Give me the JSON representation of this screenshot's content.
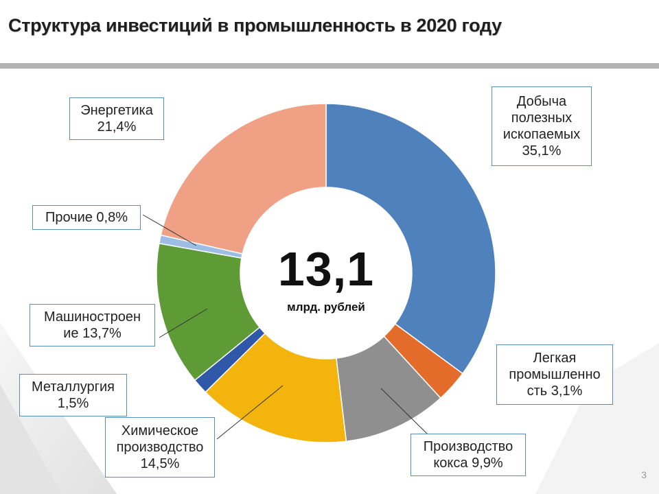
{
  "slide": {
    "title": "Структура инвестиций в промышленность в 2020 году",
    "page_number": "3"
  },
  "center": {
    "value": "13,1",
    "unit": "млрд. рублей"
  },
  "labels": {
    "mining": [
      "Добыча",
      "полезных",
      "ископаемых",
      "35,1%"
    ],
    "light": [
      "Легкая",
      "промышленно",
      "сть 3,1%"
    ],
    "coke": [
      "Производство",
      "кокса 9,9%"
    ],
    "chem": [
      "Химическое",
      "производство",
      "14,5%"
    ],
    "metal": [
      "Металлургия",
      "1,5%"
    ],
    "mech": [
      "Машиностроен",
      "ие 13,7%"
    ],
    "other": [
      "Прочие 0,8%"
    ],
    "energy": [
      "Энергетика",
      "21,4%"
    ]
  },
  "colors": {
    "mining": "#4f81bd",
    "light": "#e46c2b",
    "coke": "#8f8f8f",
    "chem": "#f2b40d",
    "metal": "#2f58a8",
    "mech": "#5e9b36",
    "other": "#9dbde5",
    "energy": "#f0a084",
    "label_border": "#5b8bbd"
  },
  "chart_data": {
    "type": "pie",
    "title": "Структура инвестиций в промышленность в 2020 году",
    "total": 13.1,
    "total_unit": "млрд. рублей",
    "categories": [
      "Добыча полезных ископаемых",
      "Легкая промышленность",
      "Производство кокса",
      "Химическое производство",
      "Металлургия",
      "Машиностроение",
      "Прочие",
      "Энергетика"
    ],
    "values": [
      35.1,
      3.1,
      9.9,
      14.5,
      1.5,
      13.7,
      0.8,
      21.4
    ],
    "unit": "%"
  }
}
